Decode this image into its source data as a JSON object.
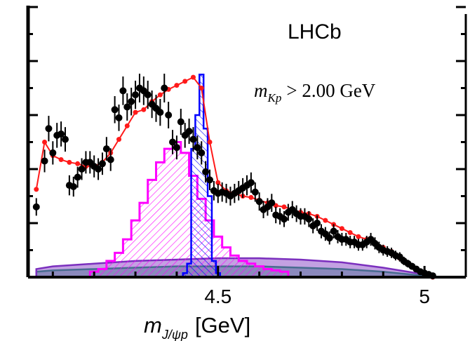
{
  "chart_data": {
    "type": "line",
    "title": "",
    "experiment_label": "LHCb",
    "cut_label": {
      "symbol": "m",
      "subscript": "Kp",
      "relation": "> 2.00 GeV"
    },
    "xlabel": {
      "symbol": "m",
      "subscript": "J/ψp",
      "unit": "[GeV]"
    },
    "ylabel": "",
    "xlim": [
      4.04,
      5.1
    ],
    "ylim": [
      0,
      200
    ],
    "x_ticks": [
      {
        "value": 4.5,
        "label": "4.5"
      },
      {
        "value": 5.0,
        "label": "5"
      }
    ],
    "grid": false,
    "legend": "none",
    "colors": {
      "data": "#000000",
      "total_fit": "#ff1a1a",
      "pc_4380": "#ff00ff",
      "pc_4450": "#0000ff",
      "background_1": "#7b2fbe",
      "background_2": "#1f9e6a"
    },
    "series": [
      {
        "role": "data",
        "x": [
          4.06,
          4.08,
          4.09,
          4.1,
          4.11,
          4.12,
          4.13,
          4.14,
          4.15,
          4.16,
          4.17,
          4.18,
          4.19,
          4.2,
          4.21,
          4.22,
          4.23,
          4.24,
          4.25,
          4.26,
          4.27,
          4.28,
          4.29,
          4.3,
          4.31,
          4.32,
          4.33,
          4.34,
          4.35,
          4.36,
          4.37,
          4.38,
          4.39,
          4.4,
          4.41,
          4.42,
          4.43,
          4.44,
          4.45,
          4.46,
          4.47,
          4.48,
          4.49,
          4.5,
          4.51,
          4.52,
          4.53,
          4.54,
          4.55,
          4.56,
          4.57,
          4.58,
          4.59,
          4.6,
          4.61,
          4.62,
          4.63,
          4.64,
          4.65,
          4.66,
          4.67,
          4.68,
          4.69,
          4.7,
          4.71,
          4.72,
          4.73,
          4.74,
          4.75,
          4.76,
          4.77,
          4.78,
          4.79,
          4.8,
          4.81,
          4.82,
          4.83,
          4.84,
          4.85,
          4.86,
          4.87,
          4.88,
          4.89,
          4.9,
          4.91,
          4.92,
          4.93,
          4.94,
          4.95,
          4.96,
          4.97,
          4.98,
          4.99,
          5.0,
          5.01,
          5.02
        ],
        "y": [
          52,
          86,
          110,
          92,
          105,
          106,
          102,
          68,
          67,
          74,
          80,
          85,
          85,
          82,
          80,
          84,
          95,
          87,
          124,
          118,
          138,
          126,
          130,
          135,
          140,
          138,
          135,
          128,
          125,
          122,
          140,
          120,
          100,
          96,
          115,
          105,
          108,
          102,
          96,
          92,
          78,
          72,
          64,
          62,
          63,
          62,
          60,
          62,
          64,
          66,
          68,
          70,
          63,
          56,
          50,
          52,
          55,
          46,
          45,
          43,
          48,
          50,
          47,
          45,
          45,
          43,
          38,
          40,
          34,
          32,
          29,
          34,
          30,
          28,
          28,
          26,
          26,
          24,
          24,
          26,
          28,
          25,
          22,
          20,
          19,
          18,
          16,
          15,
          12,
          10,
          8,
          6,
          4,
          3,
          2,
          1
        ]
      },
      {
        "role": "total_fit",
        "x": [
          4.06,
          4.08,
          4.1,
          4.12,
          4.14,
          4.16,
          4.18,
          4.2,
          4.22,
          4.24,
          4.26,
          4.28,
          4.3,
          4.32,
          4.34,
          4.36,
          4.38,
          4.4,
          4.42,
          4.44,
          4.46,
          4.48,
          4.5,
          4.52,
          4.54,
          4.56,
          4.58,
          4.6,
          4.62,
          4.64,
          4.66,
          4.68,
          4.7,
          4.72,
          4.74,
          4.76,
          4.78,
          4.8,
          4.82,
          4.84,
          4.86,
          4.88,
          4.9,
          4.92,
          4.94,
          4.96,
          4.98,
          5.0,
          5.02
        ],
        "y": [
          65,
          100,
          90,
          87,
          85,
          84,
          82,
          82,
          85,
          92,
          102,
          112,
          122,
          124,
          130,
          135,
          139,
          142,
          145,
          148,
          140,
          100,
          70,
          64,
          62,
          60,
          59,
          57,
          55,
          53,
          52,
          50,
          48,
          47,
          45,
          42,
          39,
          36,
          33,
          30,
          28,
          25,
          22,
          19,
          14,
          10,
          6,
          2,
          0
        ]
      },
      {
        "role": "pc_4380",
        "x": [
          4.2,
          4.22,
          4.24,
          4.26,
          4.28,
          4.3,
          4.32,
          4.34,
          4.36,
          4.38,
          4.4,
          4.42,
          4.44,
          4.46,
          4.48,
          4.5,
          4.52,
          4.54,
          4.56,
          4.58,
          4.6,
          4.62,
          4.64,
          4.66
        ],
        "y": [
          4,
          6,
          12,
          18,
          28,
          42,
          55,
          72,
          85,
          95,
          100,
          92,
          75,
          58,
          42,
          30,
          22,
          16,
          12,
          10,
          8,
          6,
          5,
          4
        ]
      },
      {
        "role": "pc_4450",
        "x": [
          4.42,
          4.43,
          4.44,
          4.45,
          4.46,
          4.47,
          4.48,
          4.49,
          4.5
        ],
        "y": [
          3,
          10,
          95,
          120,
          150,
          110,
          60,
          12,
          3
        ]
      },
      {
        "role": "background_1",
        "x": [
          4.06,
          4.1,
          4.2,
          4.3,
          4.4,
          4.5,
          4.6,
          4.7,
          4.8,
          4.9,
          5.0,
          5.02
        ],
        "y": [
          6,
          8,
          10,
          12,
          13,
          14,
          14,
          13,
          11,
          7,
          2,
          0
        ]
      },
      {
        "role": "background_2",
        "x": [
          4.06,
          4.1,
          4.2,
          4.3,
          4.4,
          4.5,
          4.6,
          4.7,
          4.8,
          4.9,
          5.0,
          5.02
        ],
        "y": [
          4,
          5,
          6,
          7,
          8,
          8,
          8,
          7,
          6,
          4,
          1,
          0
        ]
      }
    ]
  }
}
